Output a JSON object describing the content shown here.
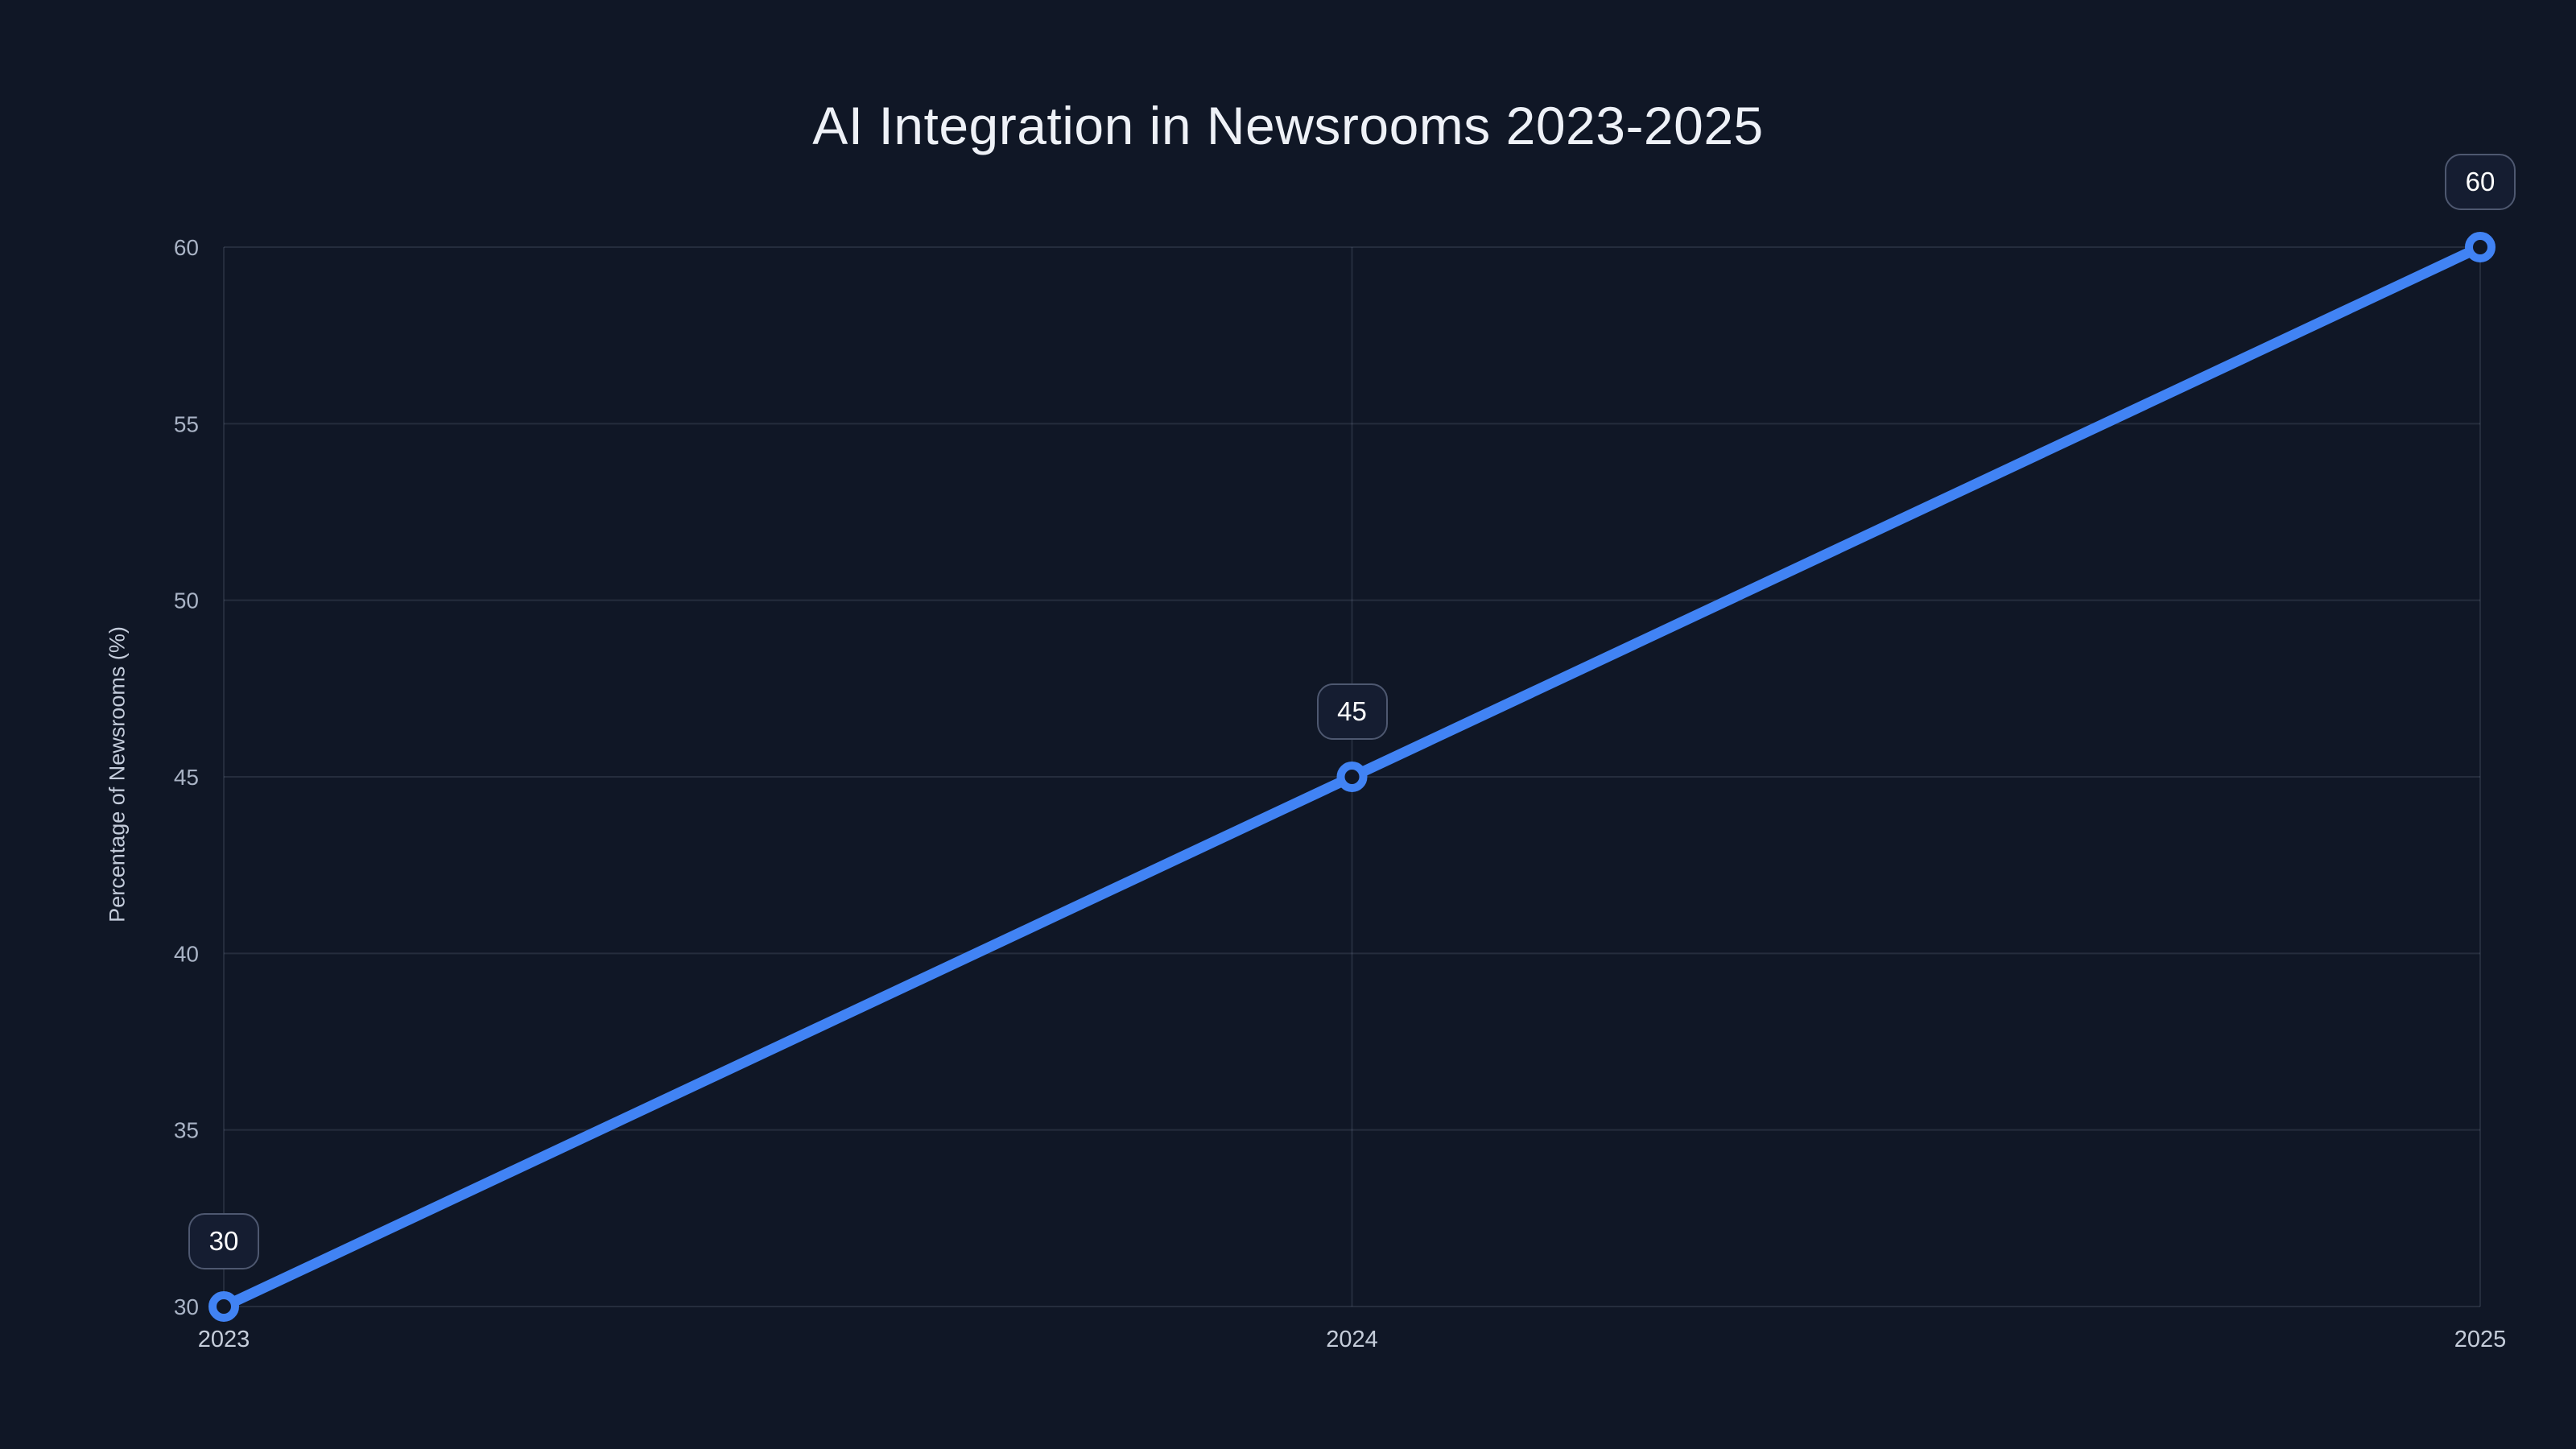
{
  "chart_data": {
    "type": "line",
    "title": "AI Integration in Newsrooms 2023-2025",
    "xlabel": "",
    "ylabel": "Percentage of Newsrooms (%)",
    "categories": [
      "2023",
      "2024",
      "2025"
    ],
    "series": [
      {
        "name": "Percentage of Newsrooms",
        "values": [
          30,
          45,
          60
        ]
      }
    ],
    "point_labels": [
      "30",
      "45",
      "60"
    ],
    "yticks": [
      "30",
      "35",
      "40",
      "45",
      "50",
      "55",
      "60"
    ],
    "ylim": [
      30,
      60
    ],
    "grid": true,
    "legend_position": "none",
    "colors": {
      "background": "#101726",
      "line": "#4183f4",
      "grid": "rgba(148,163,184,0.16)",
      "y_tick_label": "#a9b3c5",
      "x_tick_label": "#c5cdda",
      "axis_title": "#c3cbda",
      "chart_title": "#eef1f7",
      "marker_ring": "#4183f4",
      "marker_fill": "#101726",
      "label_box_border": "#4e5870",
      "label_box_bg": "#151d31",
      "label_box_text": "#ffffff"
    }
  }
}
